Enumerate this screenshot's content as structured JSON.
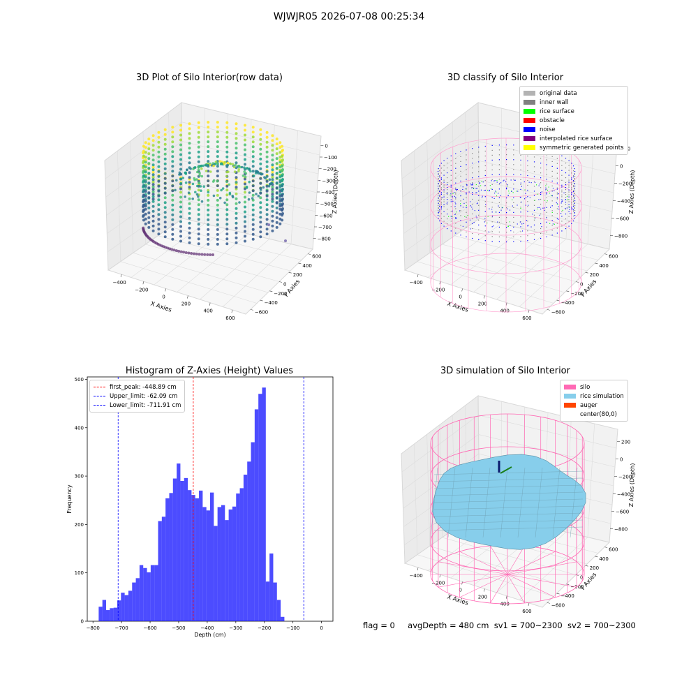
{
  "figure": {
    "suptitle": "WJWJR05 2026-07-08 00:25:34",
    "footer": {
      "flag": "flag = 0",
      "avg": "avgDepth = 480 cm",
      "sv1": "sv1 = 700~2300",
      "sv2": "sv2 = 700~2300"
    }
  },
  "chart_data": [
    {
      "type": "scatter",
      "projection": "3d",
      "title": "3D Plot of Silo Interior(row data)",
      "xlabel": "X Axies",
      "ylabel": "Y Axies",
      "zlabel": "Z Axies (Depth)",
      "x_ticks": [
        "−400",
        "−200",
        "0",
        "200",
        "400",
        "600"
      ],
      "y_ticks": [
        "−600",
        "−400",
        "−200",
        "0",
        "200",
        "400",
        "600"
      ],
      "z_ticks": [
        "0",
        "−100",
        "−200",
        "−300",
        "−400",
        "−500",
        "−600",
        "−700",
        "−800"
      ],
      "xlim": [
        -500,
        650
      ],
      "ylim": [
        -650,
        650
      ],
      "zlim": [
        -800,
        0
      ],
      "colormap": "viridis"
    },
    {
      "type": "scatter",
      "projection": "3d",
      "title": "3D classify of Silo Interior",
      "xlabel": "X Axies",
      "ylabel": "Y Axies",
      "zlabel": "Z Axies (Depth)",
      "x_ticks": [
        "−400",
        "−200",
        "0",
        "200",
        "400",
        "600"
      ],
      "y_ticks": [
        "−600",
        "−400",
        "−200",
        "0",
        "200",
        "400",
        "600"
      ],
      "z_ticks": [
        "200",
        "0",
        "−200",
        "−400",
        "−600",
        "−800"
      ],
      "legend": [
        {
          "label": "original data",
          "color": "#b3b3b3"
        },
        {
          "label": "inner wall",
          "color": "#808080"
        },
        {
          "label": "rice surface",
          "color": "#00ff00"
        },
        {
          "label": "obstacle",
          "color": "#ff0000"
        },
        {
          "label": "noise",
          "color": "#0000ff"
        },
        {
          "label": "interpolated rice surface",
          "color": "#800080"
        },
        {
          "label": "symmetric generated points",
          "color": "#ffff00"
        }
      ],
      "silo_color": "#ff9fcf"
    },
    {
      "type": "bar",
      "title": "Histogram of Z-Axies (Height) Values",
      "xlabel": "Depth (cm)",
      "ylabel": "Frequency",
      "xlim": [
        -800,
        0
      ],
      "ylim": [
        0,
        500
      ],
      "x_ticks": [
        -800,
        -700,
        -600,
        -500,
        -400,
        -300,
        -200,
        -100,
        0
      ],
      "y_ticks": [
        0,
        100,
        200,
        300,
        400,
        500
      ],
      "bin_start": -780,
      "bin_width": 13.0,
      "values": [
        30,
        44,
        23,
        27,
        28,
        43,
        59,
        54,
        63,
        80,
        89,
        116,
        110,
        101,
        116,
        116,
        207,
        216,
        254,
        265,
        295,
        326,
        290,
        296,
        271,
        261,
        254,
        270,
        236,
        229,
        266,
        197,
        236,
        240,
        209,
        231,
        237,
        264,
        275,
        303,
        330,
        370,
        438,
        470,
        483,
        82,
        140,
        80,
        44,
        9
      ],
      "bar_color": "#0000ff",
      "lines": [
        {
          "label": "first_peak: -448.89 cm",
          "x": -448.89,
          "color": "#ff0000"
        },
        {
          "label": "Upper_limit: -62.09 cm",
          "x": -62.09,
          "color": "#0000ff"
        },
        {
          "label": "Lower_limit: -711.91 cm",
          "x": -711.91,
          "color": "#0000ff"
        }
      ],
      "legend_position": "top-left"
    },
    {
      "type": "surface",
      "projection": "3d",
      "title": "3D simulation of Silo Interior",
      "xlabel": "X Axies",
      "ylabel": "Y Axies",
      "zlabel": "Z Axies (Depth)",
      "x_ticks": [
        "−400",
        "−200",
        "0",
        "200",
        "400",
        "600"
      ],
      "y_ticks": [
        "−600",
        "−400",
        "−200",
        "0",
        "200",
        "400",
        "600"
      ],
      "z_ticks": [
        "200",
        "0",
        "−200",
        "−400",
        "−600",
        "−800"
      ],
      "legend": [
        {
          "label": "silo",
          "color": "#ff69b4"
        },
        {
          "label": "rice simulation",
          "color": "#87ceeb"
        },
        {
          "label": "auger",
          "color": "#ff4500"
        },
        {
          "label": "center(80,0)",
          "color": ""
        }
      ]
    }
  ]
}
